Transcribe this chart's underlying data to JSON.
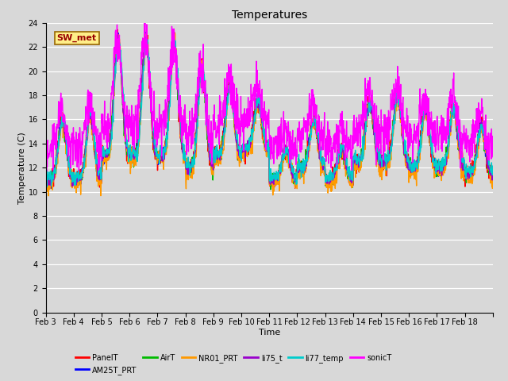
{
  "title": "Temperatures",
  "xlabel": "Time",
  "ylabel": "Temperature (C)",
  "ylim": [
    0,
    24
  ],
  "yticks": [
    0,
    2,
    4,
    6,
    8,
    10,
    12,
    14,
    16,
    18,
    20,
    22,
    24
  ],
  "date_labels": [
    "Feb 3",
    "Feb 4",
    "Feb 5",
    "Feb 6",
    "Feb 7",
    "Feb 8",
    "Feb 9",
    "Feb 10",
    "Feb 11",
    "Feb 12",
    "Feb 13",
    "Feb 14",
    "Feb 15",
    "Feb 16",
    "Feb 17",
    "Feb 18"
  ],
  "n_days": 16,
  "series_names": [
    "PanelT",
    "AM25T_PRT",
    "AirT",
    "NR01_PRT",
    "li75_t",
    "li77_temp",
    "sonicT"
  ],
  "series_colors": [
    "#ff0000",
    "#0000ff",
    "#00bb00",
    "#ff9900",
    "#9900cc",
    "#00cccc",
    "#ff00ff"
  ],
  "series_lw": [
    1.0,
    1.0,
    1.0,
    1.0,
    1.0,
    1.0,
    1.0
  ],
  "annotation_text": "SW_met",
  "annotation_fgcolor": "#990000",
  "annotation_bgcolor": "#ffee88",
  "annotation_edgecolor": "#996600",
  "fig_facecolor": "#d8d8d8",
  "axes_facecolor": "#d8d8d8",
  "grid_color": "#ffffff",
  "title_fontsize": 10,
  "axis_label_fontsize": 8,
  "tick_fontsize": 7,
  "legend_fontsize": 7
}
